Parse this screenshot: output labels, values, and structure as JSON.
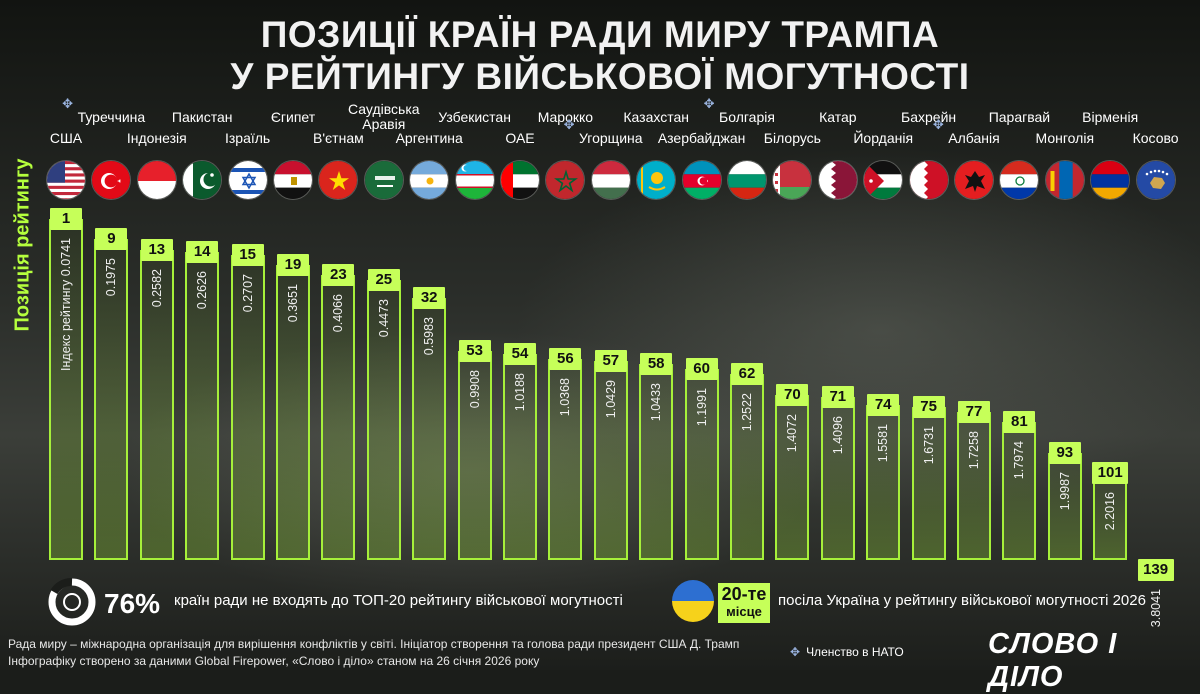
{
  "title": {
    "line1": "ПОЗИЦІЇ КРАЇН РАДИ МИРУ ТРАМПА",
    "line2": "У РЕЙТИНГУ ВІЙСЬКОВОЇ МОГУТНОСТІ"
  },
  "ylabel": "Позиція рейтингу",
  "index_label": "Індекс рейтингу",
  "nato_icon": "nato-compass-icon",
  "colors": {
    "accent": "#c6ff59",
    "bar_border": "#a6f03a",
    "nato": "#9ab4e0"
  },
  "chart_data": {
    "type": "bar",
    "title": "ПОЗИЦІЇ КРАЇН РАДИ МИРУ ТРАМПА У РЕЙТИНГУ ВІЙСЬКОВОЇ МОГУТНОСТІ",
    "ylabel": "Позиція рейтингу",
    "value_label": "Індекс рейтингу",
    "countries": [
      {
        "name": "США",
        "rank": 1,
        "index": "0.0741",
        "nato": false
      },
      {
        "name": "Туреччина",
        "rank": 9,
        "index": "0.1975",
        "nato": true
      },
      {
        "name": "Індонезія",
        "rank": 13,
        "index": "0.2582",
        "nato": false
      },
      {
        "name": "Пакистан",
        "rank": 14,
        "index": "0.2626",
        "nato": false
      },
      {
        "name": "Ізраїль",
        "rank": 15,
        "index": "0.2707",
        "nato": false
      },
      {
        "name": "Єгипет",
        "rank": 19,
        "index": "0.3651",
        "nato": false
      },
      {
        "name": "В'єтнам",
        "rank": 23,
        "index": "0.4066",
        "nato": false
      },
      {
        "name": "Саудівська Аравія",
        "rank": 25,
        "index": "0.4473",
        "nato": false
      },
      {
        "name": "Аргентина",
        "rank": 32,
        "index": "0.5983",
        "nato": false
      },
      {
        "name": "Узбекистан",
        "rank": 53,
        "index": "0.9908",
        "nato": false
      },
      {
        "name": "ОАЕ",
        "rank": 54,
        "index": "1.0188",
        "nato": false
      },
      {
        "name": "Марокко",
        "rank": 56,
        "index": "1.0368",
        "nato": false
      },
      {
        "name": "Угорщина",
        "rank": 57,
        "index": "1.0429",
        "nato": true
      },
      {
        "name": "Казахстан",
        "rank": 58,
        "index": "1.0433",
        "nato": false
      },
      {
        "name": "Азербайджан",
        "rank": 60,
        "index": "1.1991",
        "nato": false
      },
      {
        "name": "Болгарія",
        "rank": 62,
        "index": "1.2522",
        "nato": true
      },
      {
        "name": "Білорусь",
        "rank": 70,
        "index": "1.4072",
        "nato": false
      },
      {
        "name": "Катар",
        "rank": 71,
        "index": "1.4096",
        "nato": false
      },
      {
        "name": "Йорданія",
        "rank": 74,
        "index": "1.5581",
        "nato": false
      },
      {
        "name": "Бахрейн",
        "rank": 75,
        "index": "1.6731",
        "nato": false
      },
      {
        "name": "Албанія",
        "rank": 77,
        "index": "1.7258",
        "nato": true
      },
      {
        "name": "Парагвай",
        "rank": 81,
        "index": "1.7974",
        "nato": false
      },
      {
        "name": "Монголія",
        "rank": 93,
        "index": "1.9987",
        "nato": false
      },
      {
        "name": "Вірменія",
        "rank": 101,
        "index": "2.2016",
        "nato": false
      },
      {
        "name": "Косово",
        "rank": 139,
        "index": "3.8041",
        "nato": false
      }
    ]
  },
  "stat": {
    "percent": "76%",
    "text": "країн ради не входять до ТОП-20 рейтингу військової могутності"
  },
  "ukraine": {
    "place_number": "20-те",
    "place_word": "місце",
    "text": "посіла Україна у рейтингу військової могутності 2026"
  },
  "footer": {
    "line1": "Рада миру – міжнародна організація для вирішення конфліктів у світі. Ініціатор створення та голова ради президент США Д. Трамп",
    "line2": "Інфографіку створено за даними Global Firepower, «Слово і діло» станом на 26 січня 2026 року",
    "nato_legend": "Членство в НАТО",
    "logo": "СЛОВО І ДІЛО"
  }
}
